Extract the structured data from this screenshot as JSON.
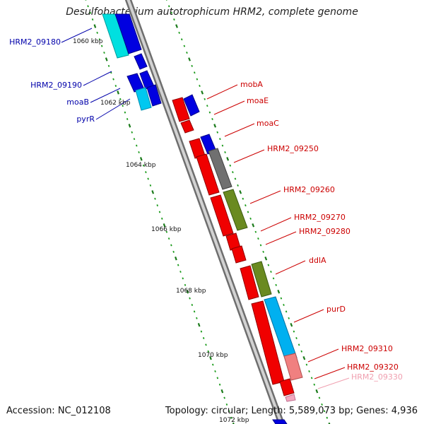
{
  "title": "Desulfobacterium autotrophicum HRM2, complete genome",
  "footer": {
    "accession": "Accession: NC_012108",
    "summary": "Topology: circular; Length: 5,589,073 bp; Genes: 4,936"
  },
  "colors": {
    "backbone": "#8c8c8c",
    "tick_major": "#1a7a1a",
    "tick_minor": "#1a9a1a",
    "forward_label": "#cc0000",
    "reverse_label": "#0000aa",
    "faded_label": "#f0a0b0"
  },
  "scale_labels": [
    "1060 kbp",
    "1062 kbp",
    "1064 kbp",
    "1066 kbp",
    "1068 kbp",
    "1070 kbp",
    "1072 kbp"
  ],
  "gene_labels": {
    "reverse": [
      "HRM2_09180",
      "HRM2_09190",
      "moaB",
      "pyrR"
    ],
    "forward": [
      "mobA",
      "moaE",
      "moaC",
      "HRM2_09250",
      "HRM2_09260",
      "HRM2_09270",
      "HRM2_09280",
      "ddlA",
      "purD",
      "HRM2_09310",
      "HRM2_09320",
      "HRM2_09330"
    ]
  }
}
